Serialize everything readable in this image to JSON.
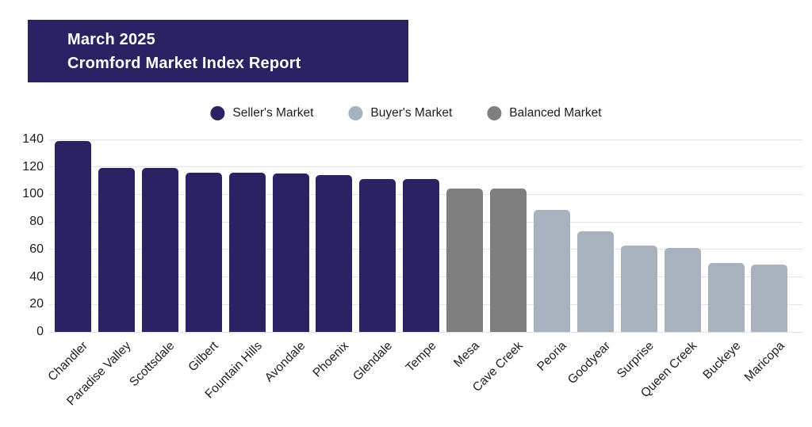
{
  "title": {
    "line1": "March 2025",
    "line2": "Cromford Market Index Report"
  },
  "legend": {
    "items": [
      {
        "label": "Seller's Market",
        "color": "#2a2363",
        "group": "seller"
      },
      {
        "label": "Buyer's Market",
        "color": "#a8b2bf",
        "group": "buyer"
      },
      {
        "label": "Balanced Market",
        "color": "#7f7f7f",
        "group": "balanced"
      }
    ]
  },
  "chart_data": {
    "type": "bar",
    "title": "March 2025 Cromford Market Index Report",
    "categories": [
      "Chandler",
      "Paradise Valley",
      "Scottsdale",
      "Gilbert",
      "Fountain Hills",
      "Avondale",
      "Phoenix",
      "Glendale",
      "Tempe",
      "Mesa",
      "Cave Creek",
      "Peoria",
      "Goodyear",
      "Surprise",
      "Queen Creek",
      "Buckeye",
      "Maricopa"
    ],
    "values": [
      139,
      119,
      119,
      116,
      116,
      115,
      114,
      111,
      111,
      104,
      104,
      89,
      73,
      63,
      61,
      50,
      49
    ],
    "groups": [
      "seller",
      "seller",
      "seller",
      "seller",
      "seller",
      "seller",
      "seller",
      "seller",
      "seller",
      "balanced",
      "balanced",
      "buyer",
      "buyer",
      "buyer",
      "buyer",
      "buyer",
      "buyer"
    ],
    "group_colors": {
      "seller": "#2a2363",
      "buyer": "#a8b2bf",
      "balanced": "#7f7f7f"
    },
    "xlabel": "",
    "ylabel": "",
    "ylim": [
      0,
      140
    ],
    "yticks": [
      0,
      20,
      40,
      60,
      80,
      100,
      120,
      140
    ],
    "grid": true,
    "gridline_color": "#e4e4e8",
    "legend_position": "top",
    "background_color": "#ffffff"
  }
}
